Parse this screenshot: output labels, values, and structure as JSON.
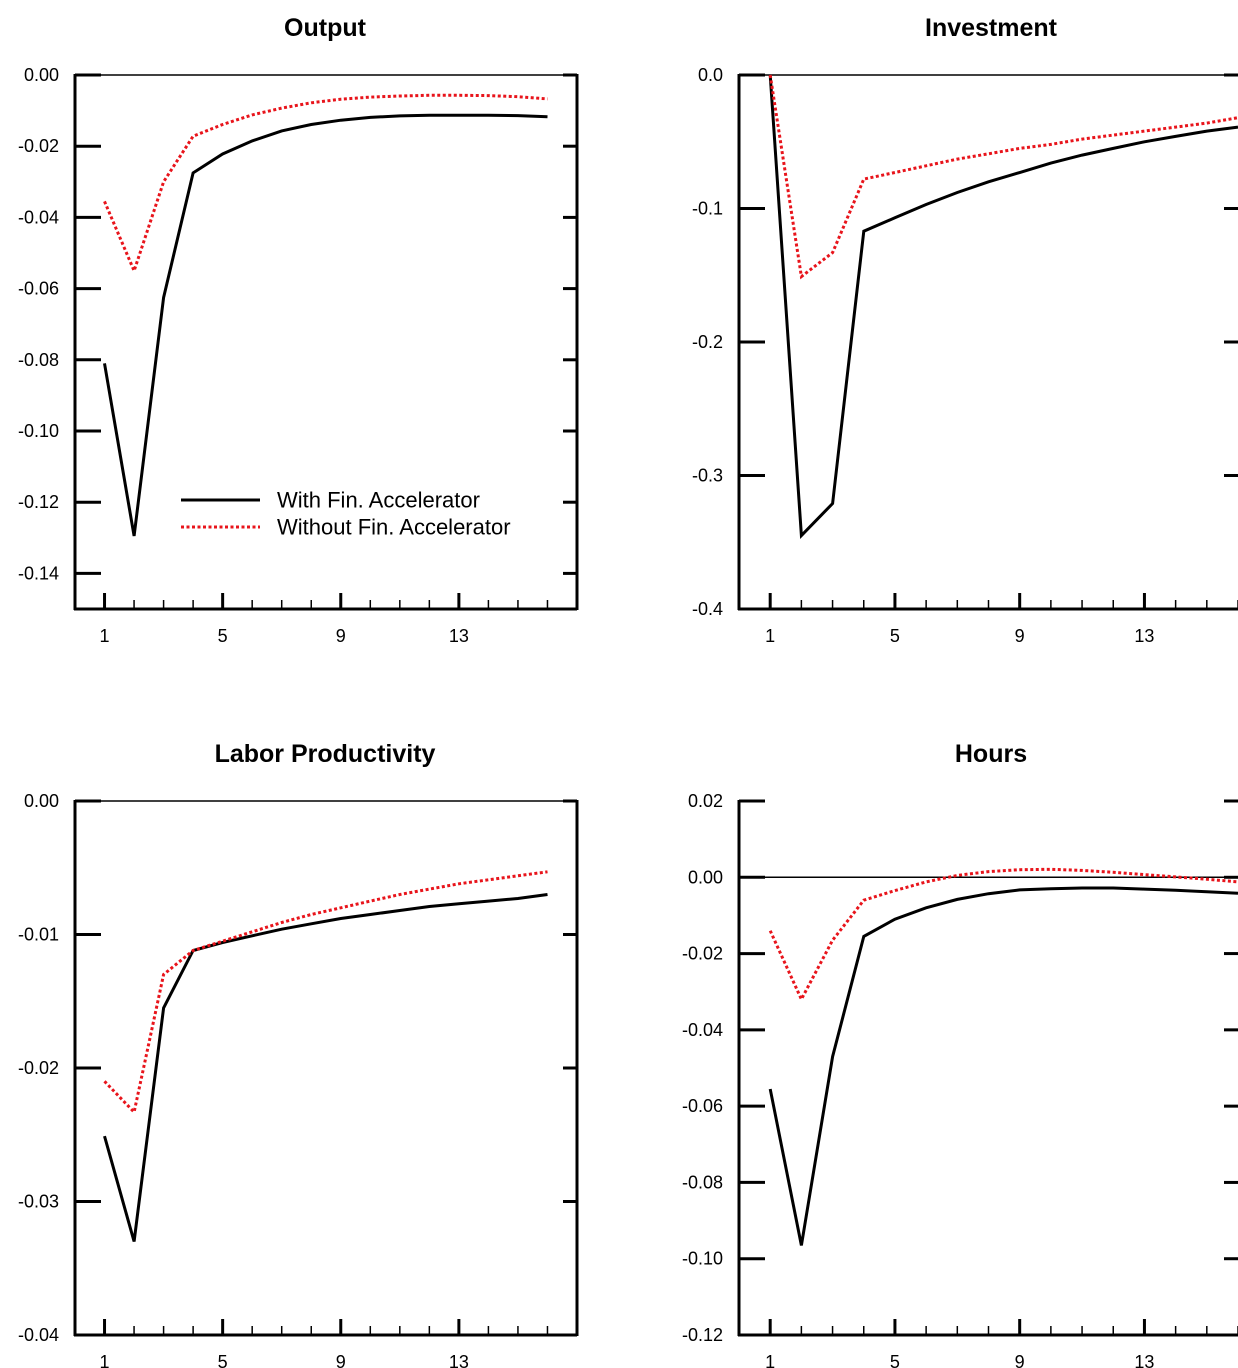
{
  "colors": {
    "with_series": "#000000",
    "without_series": "#e8141b",
    "axis": "#000000",
    "background": "#ffffff"
  },
  "legend": {
    "panel": 0,
    "placement": "bottom-right",
    "entries": [
      "With Fin. Accelerator",
      "Without Fin. Accelerator"
    ]
  },
  "chart_data": [
    {
      "type": "line",
      "title": "Output",
      "xlabel": "",
      "ylabel": "",
      "x": [
        1,
        2,
        3,
        4,
        5,
        6,
        7,
        8,
        9,
        10,
        11,
        12,
        13,
        14,
        15,
        16
      ],
      "xticks": [
        1,
        5,
        9,
        13
      ],
      "xticks_minor": [
        1,
        2,
        3,
        4,
        5,
        6,
        7,
        8,
        9,
        10,
        11,
        12,
        13,
        14,
        15,
        16
      ],
      "xticklabels": [
        "1",
        "5",
        "9",
        "13"
      ],
      "xlim": [
        0,
        17
      ],
      "ylim": [
        -0.15,
        0.0
      ],
      "yticks": [
        0.0,
        -0.02,
        -0.04,
        -0.06,
        -0.08,
        -0.1,
        -0.12,
        -0.14
      ],
      "yticklabels": [
        "0.00",
        "-0.02",
        "-0.04",
        "-0.06",
        "-0.08",
        "-0.10",
        "-0.12",
        "-0.14"
      ],
      "zero_line": true,
      "grid": false,
      "series": [
        {
          "name": "With Fin. Accelerator",
          "style": "solid",
          "values": [
            -0.081,
            -0.1295,
            -0.0625,
            -0.0275,
            -0.0222,
            -0.0185,
            -0.0157,
            -0.0139,
            -0.0127,
            -0.0119,
            -0.0115,
            -0.0113,
            -0.0113,
            -0.0113,
            -0.0114,
            -0.0117
          ]
        },
        {
          "name": "Without Fin. Accelerator",
          "style": "dotted",
          "values": [
            -0.0355,
            -0.055,
            -0.03,
            -0.0172,
            -0.0139,
            -0.0112,
            -0.0093,
            -0.0078,
            -0.0068,
            -0.0062,
            -0.0059,
            -0.0057,
            -0.0057,
            -0.0058,
            -0.0061,
            -0.0067
          ]
        }
      ]
    },
    {
      "type": "line",
      "title": "Investment",
      "xlabel": "",
      "ylabel": "",
      "x": [
        1,
        2,
        3,
        4,
        5,
        6,
        7,
        8,
        9,
        10,
        11,
        12,
        13,
        14,
        15,
        16
      ],
      "xticks": [
        1,
        5,
        9,
        13
      ],
      "xticks_minor": [
        1,
        2,
        3,
        4,
        5,
        6,
        7,
        8,
        9,
        10,
        11,
        12,
        13,
        14,
        15,
        16
      ],
      "xticklabels": [
        "1",
        "5",
        "9",
        "13"
      ],
      "xlim": [
        0,
        16
      ],
      "ylim": [
        -0.4,
        0.0
      ],
      "yticks": [
        0.0,
        -0.1,
        -0.2,
        -0.3,
        -0.4
      ],
      "yticklabels": [
        "0.0",
        "-0.1",
        "-0.2",
        "-0.3",
        "-0.4"
      ],
      "zero_line": true,
      "grid": false,
      "series": [
        {
          "name": "With Fin. Accelerator",
          "style": "solid",
          "values": [
            0.0,
            -0.345,
            -0.321,
            -0.117,
            -0.107,
            -0.097,
            -0.088,
            -0.08,
            -0.073,
            -0.066,
            -0.06,
            -0.055,
            -0.05,
            -0.046,
            -0.042,
            -0.039
          ]
        },
        {
          "name": "Without Fin. Accelerator",
          "style": "dotted",
          "values": [
            0.0,
            -0.151,
            -0.133,
            -0.078,
            -0.073,
            -0.068,
            -0.063,
            -0.059,
            -0.055,
            -0.052,
            -0.048,
            -0.045,
            -0.042,
            -0.039,
            -0.036,
            -0.032
          ]
        }
      ]
    },
    {
      "type": "line",
      "title": "Labor Productivity",
      "xlabel": "",
      "ylabel": "",
      "x": [
        1,
        2,
        3,
        4,
        5,
        6,
        7,
        8,
        9,
        10,
        11,
        12,
        13,
        14,
        15,
        16
      ],
      "xticks": [
        1,
        5,
        9,
        13
      ],
      "xticks_minor": [
        1,
        2,
        3,
        4,
        5,
        6,
        7,
        8,
        9,
        10,
        11,
        12,
        13,
        14,
        15,
        16
      ],
      "xticklabels": [
        "1",
        "5",
        "9",
        "13"
      ],
      "xlim": [
        0,
        17
      ],
      "ylim": [
        -0.04,
        0.0
      ],
      "yticks": [
        0.0,
        -0.01,
        -0.02,
        -0.03,
        -0.04
      ],
      "yticklabels": [
        "0.00",
        "-0.01",
        "-0.02",
        "-0.03",
        "-0.04"
      ],
      "zero_line": true,
      "grid": false,
      "series": [
        {
          "name": "With Fin. Accelerator",
          "style": "solid",
          "values": [
            -0.0251,
            -0.033,
            -0.0155,
            -0.0112,
            -0.0106,
            -0.0101,
            -0.0096,
            -0.0092,
            -0.0088,
            -0.0085,
            -0.0082,
            -0.0079,
            -0.0077,
            -0.0075,
            -0.0073,
            -0.007
          ]
        },
        {
          "name": "Without Fin. Accelerator",
          "style": "dotted",
          "values": [
            -0.021,
            -0.0233,
            -0.013,
            -0.0112,
            -0.0105,
            -0.0098,
            -0.0091,
            -0.0085,
            -0.008,
            -0.0075,
            -0.007,
            -0.0066,
            -0.0062,
            -0.0059,
            -0.0056,
            -0.0053
          ]
        }
      ]
    },
    {
      "type": "line",
      "title": "Hours",
      "xlabel": "",
      "ylabel": "",
      "x": [
        1,
        2,
        3,
        4,
        5,
        6,
        7,
        8,
        9,
        10,
        11,
        12,
        13,
        14,
        15,
        16
      ],
      "xticks": [
        1,
        5,
        9,
        13
      ],
      "xticks_minor": [
        1,
        2,
        3,
        4,
        5,
        6,
        7,
        8,
        9,
        10,
        11,
        12,
        13,
        14,
        15,
        16
      ],
      "xticklabels": [
        "1",
        "5",
        "9",
        "13"
      ],
      "xlim": [
        0,
        16
      ],
      "ylim": [
        -0.12,
        0.02
      ],
      "yticks": [
        0.02,
        0.0,
        -0.02,
        -0.04,
        -0.06,
        -0.08,
        -0.1,
        -0.12
      ],
      "yticklabels": [
        "0.02",
        "0.00",
        "-0.02",
        "-0.04",
        "-0.06",
        "-0.08",
        "-0.10",
        "-0.12"
      ],
      "zero_line": true,
      "grid": false,
      "series": [
        {
          "name": "With Fin. Accelerator",
          "style": "solid",
          "values": [
            -0.0555,
            -0.0965,
            -0.047,
            -0.0155,
            -0.011,
            -0.008,
            -0.0058,
            -0.0043,
            -0.0033,
            -0.003,
            -0.0028,
            -0.0028,
            -0.0031,
            -0.0034,
            -0.0038,
            -0.0042
          ]
        },
        {
          "name": "Without Fin. Accelerator",
          "style": "dotted",
          "values": [
            -0.014,
            -0.032,
            -0.0165,
            -0.006,
            -0.0035,
            -0.0012,
            0.0005,
            0.0015,
            0.002,
            0.0021,
            0.0018,
            0.0013,
            0.0007,
            0.0001,
            -0.0005,
            -0.0012
          ]
        }
      ]
    }
  ]
}
